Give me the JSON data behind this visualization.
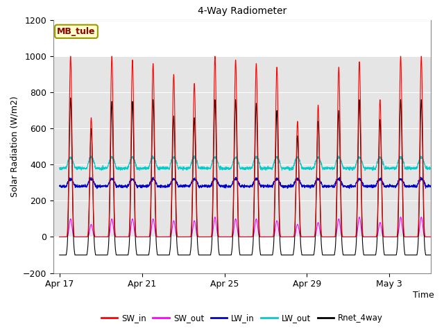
{
  "title": "4-Way Radiometer",
  "xlabel": "Time",
  "ylabel": "Solar Radiation (W/m2)",
  "ylim": [
    -200,
    1200
  ],
  "xtick_labels": [
    "Apr 17",
    "Apr 21",
    "Apr 25",
    "Apr 29",
    "May 3"
  ],
  "xtick_positions": [
    0,
    4,
    8,
    12,
    16
  ],
  "station_label": "MB_tule",
  "station_label_color": "#8B0000",
  "station_box_facecolor": "#FFFFCC",
  "station_box_edgecolor": "#999900",
  "legend_entries": [
    "SW_in",
    "SW_out",
    "LW_in",
    "LW_out",
    "Rnet_4way"
  ],
  "line_colors": [
    "#FF0000",
    "#FF00FF",
    "#0000CC",
    "#00CCCC",
    "#000000"
  ],
  "fig_facecolor": "#FFFFFF",
  "plot_bg_color": "#FFFFFF",
  "n_days": 18,
  "pts_per_day": 144,
  "SW_in_peaks": [
    1000,
    660,
    1000,
    980,
    960,
    900,
    850,
    1000,
    980,
    960,
    940,
    640,
    730,
    940,
    970,
    760,
    1000,
    1000
  ],
  "SW_out_peaks": [
    100,
    70,
    100,
    100,
    100,
    90,
    90,
    110,
    100,
    100,
    90,
    70,
    80,
    100,
    110,
    80,
    110,
    110
  ],
  "LW_in_base": 280,
  "LW_in_daytime_peak": 320,
  "LW_out_base": 380,
  "LW_out_daytime_peak": 440,
  "Rnet_peaks": [
    770,
    600,
    750,
    750,
    760,
    670,
    660,
    760,
    760,
    740,
    700,
    560,
    640,
    700,
    760,
    650,
    760,
    760
  ],
  "Rnet_nighttime": -100,
  "grid_color": "#CCCCCC",
  "shaded_band_color": "#CCCCCC",
  "shaded_band_alpha": 0.5
}
